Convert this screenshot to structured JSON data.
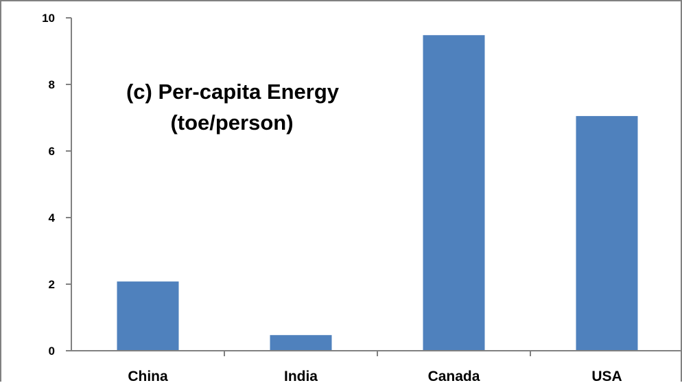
{
  "chart_data": {
    "type": "bar",
    "title_lines": [
      "(c) Per-capita Energy",
      "(toe/person)"
    ],
    "categories": [
      "China",
      "India",
      "Canada",
      "USA"
    ],
    "values": [
      2.08,
      0.47,
      9.48,
      7.05
    ],
    "ylim": [
      0,
      10
    ],
    "yticks": [
      "0",
      "2",
      "4",
      "6",
      "8",
      "10"
    ],
    "ytick_values": [
      0,
      2,
      4,
      6,
      8,
      10
    ],
    "xlabel": "",
    "ylabel": "",
    "grid": false,
    "legend": false,
    "bar_color": "#4f81bd",
    "axis_color": "#808080"
  }
}
